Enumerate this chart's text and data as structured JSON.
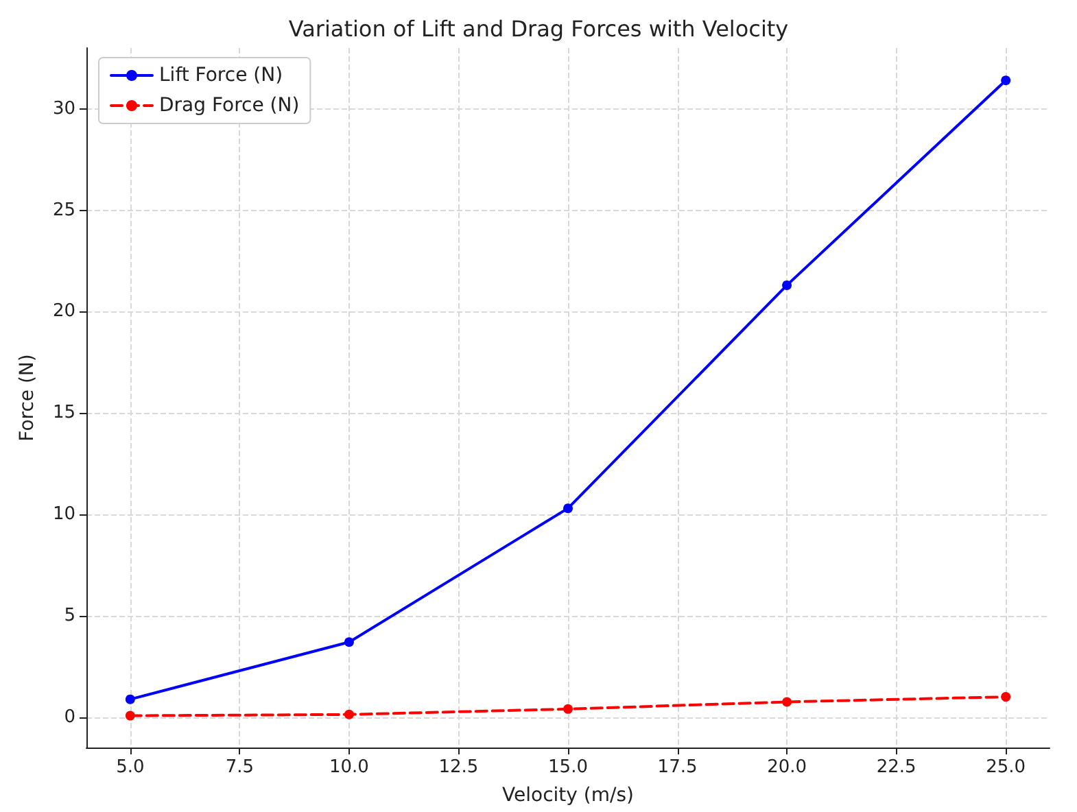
{
  "chart_data": {
    "type": "line",
    "title": "Variation of Lift and Drag Forces with Velocity",
    "xlabel": "Velocity (m/s)",
    "ylabel": "Force (N)",
    "x": [
      5,
      10,
      15,
      20,
      25
    ],
    "series": [
      {
        "name": "Lift Force (N)",
        "color": "#0000ff",
        "line_style": "solid",
        "values": [
          0.88,
          3.7,
          10.3,
          21.3,
          31.4
        ]
      },
      {
        "name": "Drag Force (N)",
        "color": "#ff0000",
        "line_style": "dashed",
        "values": [
          0.07,
          0.13,
          0.4,
          0.75,
          1.0
        ]
      }
    ],
    "xlim": [
      4,
      26
    ],
    "xticks": [
      {
        "value": 5,
        "label": "5.0"
      },
      {
        "value": 7.5,
        "label": "7.5"
      },
      {
        "value": 10,
        "label": "10.0"
      },
      {
        "value": 12.5,
        "label": "12.5"
      },
      {
        "value": 15,
        "label": "15.0"
      },
      {
        "value": 17.5,
        "label": "17.5"
      },
      {
        "value": 20,
        "label": "20.0"
      },
      {
        "value": 22.5,
        "label": "22.5"
      },
      {
        "value": 25,
        "label": "25.0"
      }
    ],
    "ylim": [
      -1.5,
      33
    ],
    "yticks": [
      0,
      5,
      10,
      15,
      20,
      25,
      30
    ],
    "grid": true,
    "legend": "top left",
    "marker": "circle"
  }
}
